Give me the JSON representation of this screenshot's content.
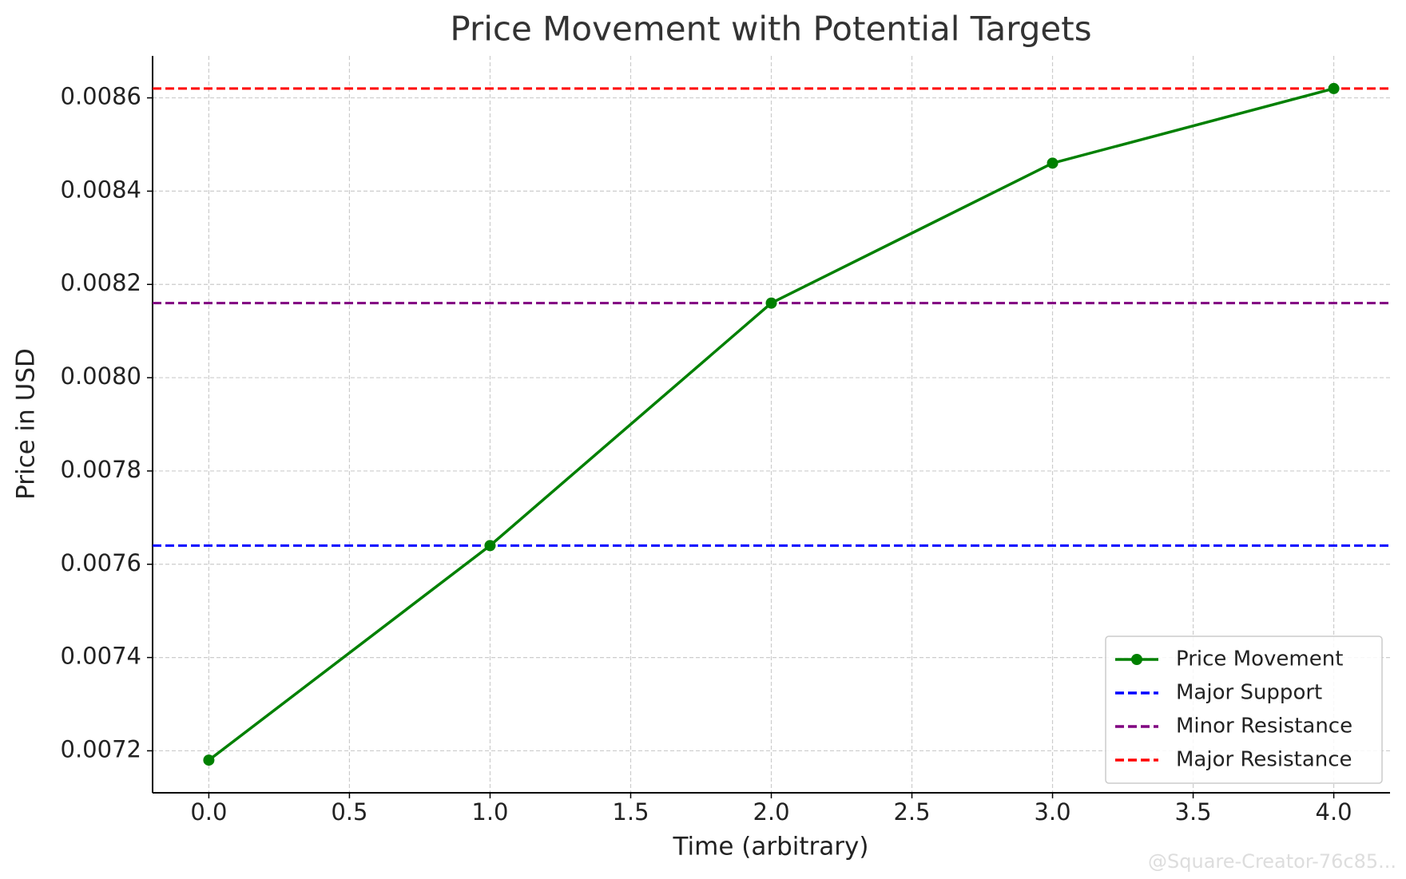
{
  "chart_data": {
    "type": "line",
    "title": "Price Movement with Potential Targets",
    "x_label": "Time (arbitrary)",
    "y_label": "Price in USD",
    "x": [
      0,
      1,
      2,
      3,
      4
    ],
    "series": [
      {
        "name": "Price Movement",
        "color": "#008000",
        "values": [
          0.00718,
          0.00764,
          0.00816,
          0.00846,
          0.00862
        ]
      }
    ],
    "hlines": [
      {
        "name": "Major Support",
        "color": "#0000ff",
        "value": 0.00764
      },
      {
        "name": "Minor Resistance",
        "color": "#800080",
        "value": 0.00816
      },
      {
        "name": "Major Resistance",
        "color": "#ff0000",
        "value": 0.00862
      }
    ],
    "xlim": [
      -0.2,
      4.2
    ],
    "xticks": [
      {
        "value": 0,
        "label": "0.0"
      },
      {
        "value": 0.5,
        "label": "0.5"
      },
      {
        "value": 1,
        "label": "1.0"
      },
      {
        "value": 1.5,
        "label": "1.5"
      },
      {
        "value": 2,
        "label": "2.0"
      },
      {
        "value": 2.5,
        "label": "2.5"
      },
      {
        "value": 3,
        "label": "3.0"
      },
      {
        "value": 3.5,
        "label": "3.5"
      },
      {
        "value": 4,
        "label": "4.0"
      }
    ],
    "ylim": [
      0.00711,
      0.00869
    ],
    "yticks": [
      {
        "value": 0.0072,
        "label": "0.0072"
      },
      {
        "value": 0.0074,
        "label": "0.0074"
      },
      {
        "value": 0.0076,
        "label": "0.0076"
      },
      {
        "value": 0.0078,
        "label": "0.0078"
      },
      {
        "value": 0.008,
        "label": "0.0080"
      },
      {
        "value": 0.0082,
        "label": "0.0082"
      },
      {
        "value": 0.0084,
        "label": "0.0084"
      },
      {
        "value": 0.0086,
        "label": "0.0086"
      }
    ],
    "grid": true,
    "legend_position": "lower right",
    "watermark": "@Square-Creator-76c85..."
  }
}
